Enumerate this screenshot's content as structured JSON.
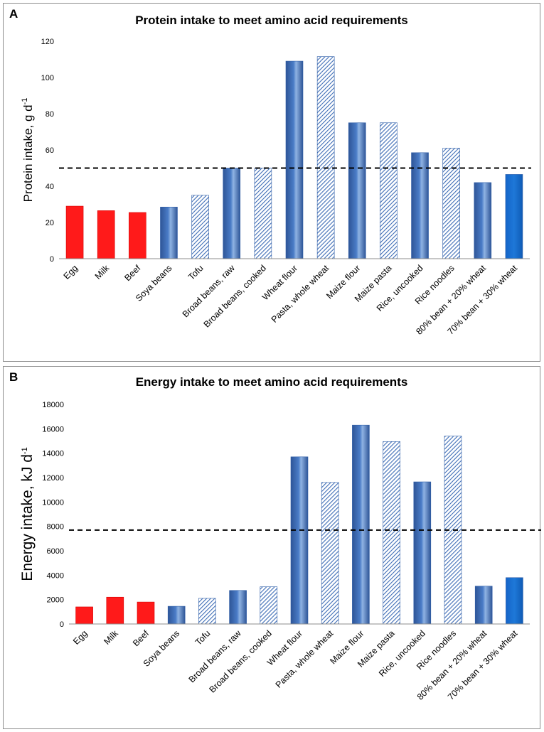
{
  "chart_data": [
    {
      "panel": "A",
      "type": "bar",
      "title": "Protein intake to meet amino acid requirements",
      "ylabel": "Protein intake, g d",
      "ylabel_sup": "-1",
      "xlabel": "",
      "ylim": [
        0,
        120
      ],
      "yticks": [
        "0",
        "20",
        "40",
        "60",
        "80",
        "100",
        "120"
      ],
      "categories": [
        "Egg",
        "Milk",
        "Beef",
        "Soya beans",
        "Tofu",
        "Broad beans, raw",
        "Broad beans, cooked",
        "Wheat flour",
        "Pasta, whole wheat",
        "Maize flour",
        "Maize pasta",
        "Rice, uncooked",
        "Rice noodles",
        "80% bean + 20% wheat",
        "70% bean + 30% wheat"
      ],
      "values": [
        29,
        26.5,
        25.5,
        28.5,
        35,
        50,
        50,
        109,
        111.5,
        75,
        75,
        58.5,
        61,
        42,
        46.5
      ],
      "styles": [
        "red",
        "red",
        "red",
        "solid",
        "hatched",
        "solid",
        "hatched",
        "solid",
        "hatched",
        "solid",
        "hatched",
        "solid",
        "hatched",
        "solid",
        "bright"
      ],
      "reference_line": 50,
      "grid": false
    },
    {
      "panel": "B",
      "type": "bar",
      "title": "Energy intake to meet amino acid requirements",
      "ylabel": "Energy intake, kJ d",
      "ylabel_sup": "-1",
      "xlabel": "",
      "ylim": [
        0,
        18000
      ],
      "yticks": [
        "0",
        "2000",
        "4000",
        "6000",
        "8000",
        "10000",
        "12000",
        "14000",
        "16000",
        "18000"
      ],
      "categories": [
        "Egg",
        "Milk",
        "Beef",
        "Soya beans",
        "Tofu",
        "Broad beans, raw",
        "Broad beans, cooked",
        "Wheat flour",
        "Pasta, whole wheat",
        "Maize flour",
        "Maize pasta",
        "Rice, uncooked",
        "Rice noodles",
        "80% bean + 20% wheat",
        "70% bean + 30% wheat"
      ],
      "values": [
        1400,
        2200,
        1800,
        1450,
        2100,
        2750,
        3050,
        13700,
        11600,
        16300,
        14950,
        11650,
        15400,
        3100,
        3800
      ],
      "styles": [
        "red",
        "red",
        "red",
        "solid",
        "hatched",
        "solid",
        "hatched",
        "solid",
        "hatched",
        "solid",
        "hatched",
        "solid",
        "hatched",
        "solid",
        "bright"
      ],
      "reference_line": 7700,
      "grid": false
    }
  ],
  "colors": {
    "red": "#ff1a1a",
    "blue_dark": "#2e5597",
    "blue_mid": "#4a7cc7",
    "blue_light": "#8fb3e3",
    "bright_blue": "#1e78d8",
    "hatch_line": "#3d6cb5",
    "axis": "#8c8c8c"
  }
}
